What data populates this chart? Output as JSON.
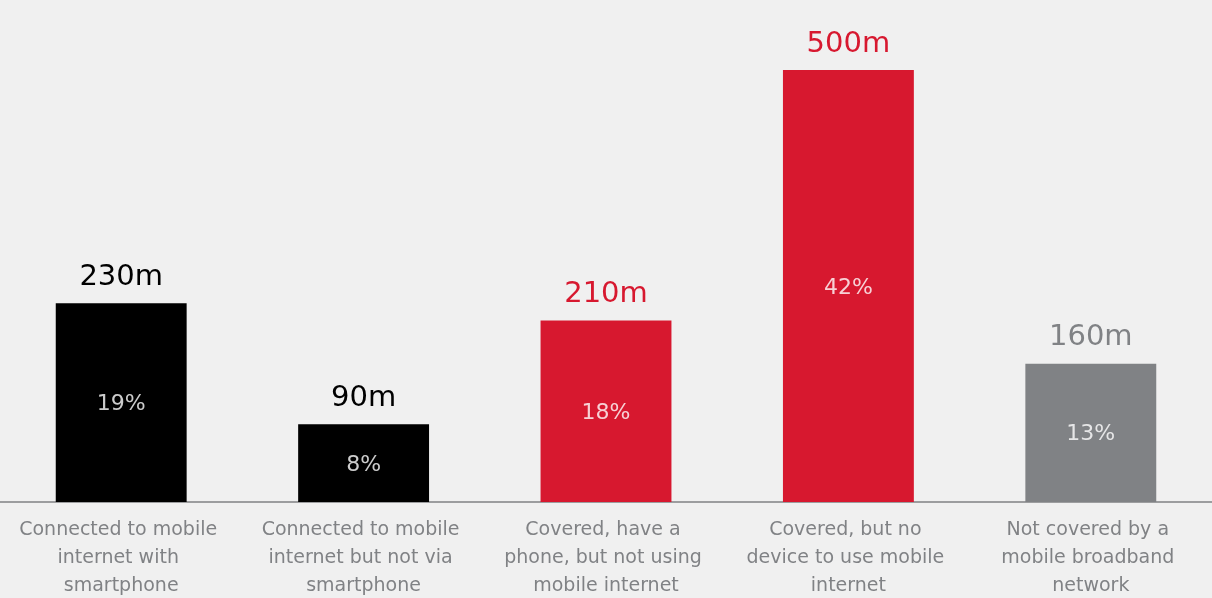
{
  "chart_data": {
    "type": "bar",
    "categories": [
      "Connected to mobile internet with smartphone",
      "Connected to mobile internet but not via smartphone",
      "Covered, have a phone, but not using mobile internet",
      "Covered, but no device to use mobile internet",
      "Not covered by a mobile broadband network"
    ],
    "values": [
      230,
      90,
      210,
      500,
      160
    ],
    "colors": [
      "#000000",
      "#000000",
      "#d7182f",
      "#d7182f",
      "#808285"
    ],
    "value_labels": [
      "230m",
      "90m",
      "210m",
      "500m",
      "160m"
    ],
    "annotations": [
      "19%",
      "8%",
      "18%",
      "42%",
      "13%"
    ]
  }
}
